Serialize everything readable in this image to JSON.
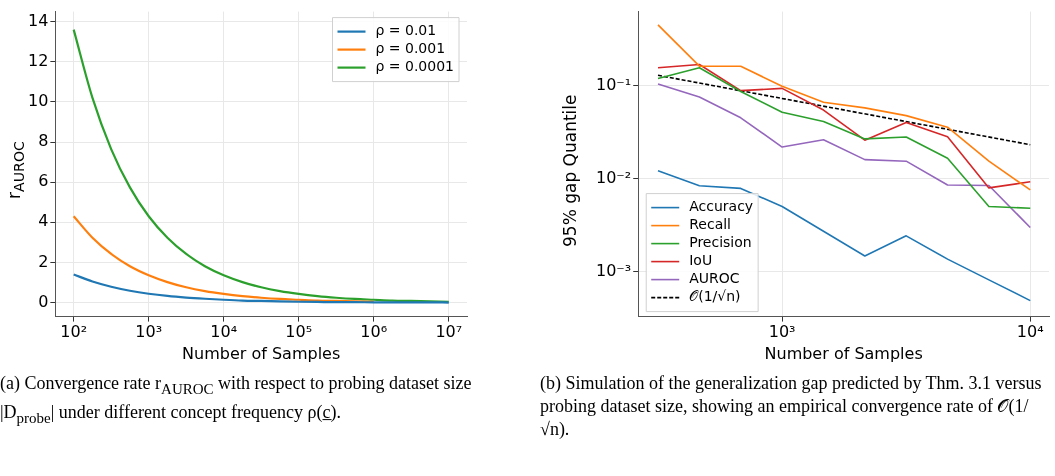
{
  "chart_data": [
    {
      "type": "line",
      "xlabel": "Number of Samples",
      "ylabel": "r$_{AUROC}$",
      "log": "x",
      "grid": true,
      "legend": "top right",
      "x": [
        100,
        178,
        316,
        562,
        1000,
        1778,
        3162,
        5623,
        10000,
        17783,
        31623,
        56234,
        100000,
        177828,
        316228,
        562341,
        1000000,
        1778279,
        3162278,
        5623413,
        10000000
      ],
      "xlim": [
        57,
        17500000
      ],
      "ylim": [
        -0.7,
        14.5
      ],
      "xticks": [
        {
          "value": 100,
          "label": "10²"
        },
        {
          "value": 1000,
          "label": "10³"
        },
        {
          "value": 10000,
          "label": "10⁴"
        },
        {
          "value": 100000,
          "label": "10⁵"
        },
        {
          "value": 1000000,
          "label": "10⁶"
        },
        {
          "value": 10000000,
          "label": "10⁷"
        }
      ],
      "yticks": [
        0,
        2,
        4,
        6,
        8,
        10,
        12,
        14
      ],
      "series": [
        {
          "name": "ρ = 0.01",
          "color": "#1f77b4",
          "values": [
            1.4,
            1.05,
            0.79,
            0.59,
            0.44,
            0.33,
            0.25,
            0.19,
            0.14,
            0.1,
            0.08,
            0.06,
            0.04,
            0.03,
            0.02,
            0.02,
            0.01,
            0.01,
            0.01,
            0.01,
            0.0
          ]
        },
        {
          "name": "ρ = 0.001",
          "color": "#ff7f0e",
          "values": [
            4.3,
            3.23,
            2.42,
            1.81,
            1.36,
            1.02,
            0.76,
            0.57,
            0.43,
            0.32,
            0.24,
            0.18,
            0.14,
            0.1,
            0.08,
            0.06,
            0.04,
            null,
            null,
            null,
            null
          ]
        },
        {
          "name": "ρ = 0.0001",
          "color": "#2ca02c",
          "values": [
            13.6,
            10.2,
            7.65,
            5.74,
            4.3,
            3.23,
            2.42,
            1.81,
            1.36,
            1.02,
            0.76,
            0.57,
            0.43,
            0.32,
            0.24,
            0.18,
            0.14,
            0.1,
            0.08,
            0.06,
            0.04
          ]
        }
      ],
      "annotations": [
        "(a) Convergence rate r$_{AUROC}$ with respect to probing dataset size |D$_{probe}$| under different concept frequency ρ(c̲)."
      ]
    },
    {
      "type": "line",
      "xlabel": "Number of Samples",
      "ylabel": "95% gap Quantile",
      "log": "xy",
      "grid": true,
      "legend": "bottom left",
      "x": [
        316,
        464,
        681,
        1000,
        1468,
        2154,
        3162,
        4642,
        6813,
        10000
      ],
      "xlim": [
        263,
        11900
      ],
      "ylim": [
        0.00033,
        0.63
      ],
      "xticks": [
        {
          "value": 1000,
          "label": "10³"
        },
        {
          "value": 10000,
          "label": "10⁴"
        }
      ],
      "yticks": [
        {
          "value": 0.001,
          "label": "10⁻³"
        },
        {
          "value": 0.01,
          "label": "10⁻²"
        },
        {
          "value": 0.1,
          "label": "10⁻¹"
        }
      ],
      "series": [
        {
          "name": "Accuracy",
          "color": "#1f77b4",
          "values": [
            0.0122,
            0.00845,
            0.0079,
            0.00505,
            0.00273,
            0.00148,
            0.00244,
            0.00137,
            0.00082,
            0.00049
          ]
        },
        {
          "name": "Recall",
          "color": "#ff7f0e",
          "values": [
            0.454,
            0.163,
            0.163,
            0.099,
            0.0666,
            0.058,
            0.0479,
            0.036,
            0.0155,
            0.0076
          ]
        },
        {
          "name": "Precision",
          "color": "#2ca02c",
          "values": [
            0.12,
            0.157,
            0.087,
            0.052,
            0.0414,
            0.0269,
            0.0282,
            0.0167,
            0.00505,
            0.00483
          ]
        },
        {
          "name": "IoU",
          "color": "#d62728",
          "values": [
            0.157,
            0.17,
            0.089,
            0.094,
            0.055,
            0.0261,
            0.0404,
            0.0284,
            0.008,
            0.0093
          ]
        },
        {
          "name": "AUROC",
          "color": "#9467bd",
          "values": [
            0.105,
            0.0759,
            0.0454,
            0.022,
            0.0263,
            0.0161,
            0.0155,
            0.0086,
            0.0085,
            0.003
          ]
        },
        {
          "name": "𝒪(1/√n)",
          "color": "#000000",
          "line_style": "dashed",
          "x": [
            316,
            10000
          ],
          "values": [
            0.13,
            0.0233
          ]
        }
      ],
      "annotations": [
        "(b) Simulation of the generalization gap predicted by Thm. 3.1 versus probing dataset size, showing an empirical convergence rate of 𝒪(1/√n)."
      ]
    }
  ]
}
